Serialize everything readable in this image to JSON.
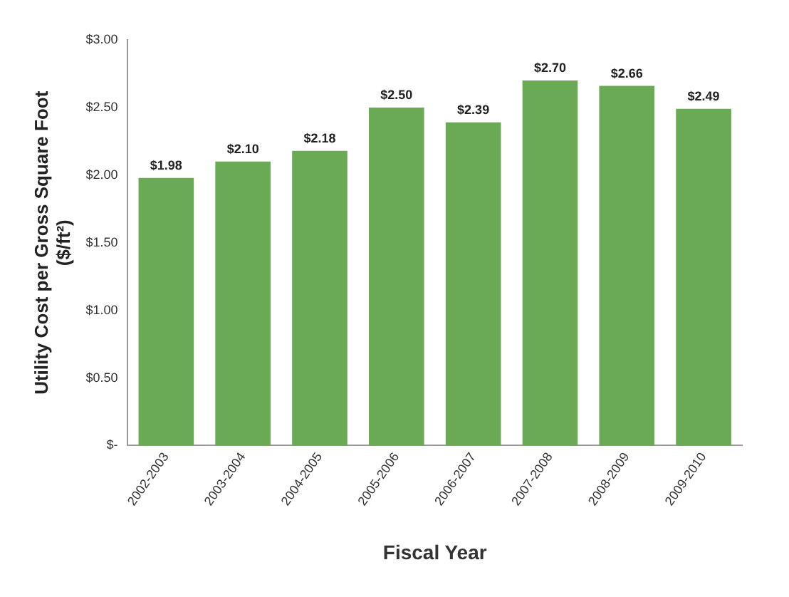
{
  "chart_data": {
    "type": "bar",
    "xlabel": "Fiscal Year",
    "ylabel": "Utility Cost per Gross Square Foot\n($/ft²)",
    "categories": [
      "2002-2003",
      "2003-2004",
      "2004-2005",
      "2005-2006",
      "2006-2007",
      "2007-2008",
      "2008-2009",
      "2009-2010"
    ],
    "values": [
      1.98,
      2.1,
      2.18,
      2.5,
      2.39,
      2.7,
      2.66,
      2.49
    ],
    "value_labels": [
      "$1.98",
      "$2.10",
      "$2.18",
      "$2.50",
      "$2.39",
      "$2.70",
      "$2.66",
      "$2.49"
    ],
    "color": "#6aaa55",
    "ylim": [
      0,
      3
    ],
    "yticks": [
      {
        "value": 0,
        "label": "$-"
      },
      {
        "value": 0.5,
        "label": "$0.50"
      },
      {
        "value": 1,
        "label": "$1.00"
      },
      {
        "value": 1.5,
        "label": "$1.50"
      },
      {
        "value": 2,
        "label": "$2.00"
      },
      {
        "value": 2.5,
        "label": "$2.50"
      },
      {
        "value": 3,
        "label": "$3.00"
      }
    ],
    "grid": false,
    "legend": false
  }
}
